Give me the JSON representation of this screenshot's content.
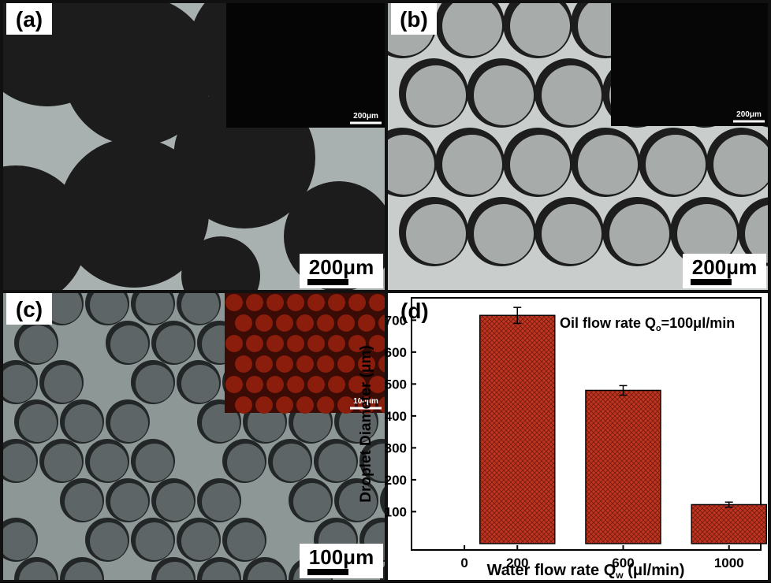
{
  "panels": [
    {
      "label": "(a)",
      "scale_bar": "200μm",
      "inset_scale_bar": "200μm"
    },
    {
      "label": "(b)",
      "scale_bar": "200μm",
      "inset_scale_bar": "200μm"
    },
    {
      "label": "(c)",
      "scale_bar": "100μm",
      "inset_scale_bar": "100μm"
    }
  ],
  "chart_data": {
    "type": "bar",
    "panel_label": "(d)",
    "annotation": {
      "text": "Oil flow rate Q",
      "sub": "o",
      "rest": "=100μl/min"
    },
    "x_label": {
      "text": "Water flow rate Q",
      "sub": "w",
      "rest": " (μl/min)"
    },
    "y_label": "Droplet Diameter (μm)",
    "x": [
      200,
      600,
      1000
    ],
    "values": [
      715,
      480,
      122
    ],
    "errors": [
      25,
      15,
      8
    ],
    "color": "#c0341f",
    "xlim": [
      -200,
      1120
    ],
    "xticks": [
      0,
      200,
      600,
      1000
    ],
    "ylim": [
      -20,
      770
    ],
    "yticks": [
      100,
      200,
      300,
      400,
      500,
      600,
      700
    ]
  }
}
